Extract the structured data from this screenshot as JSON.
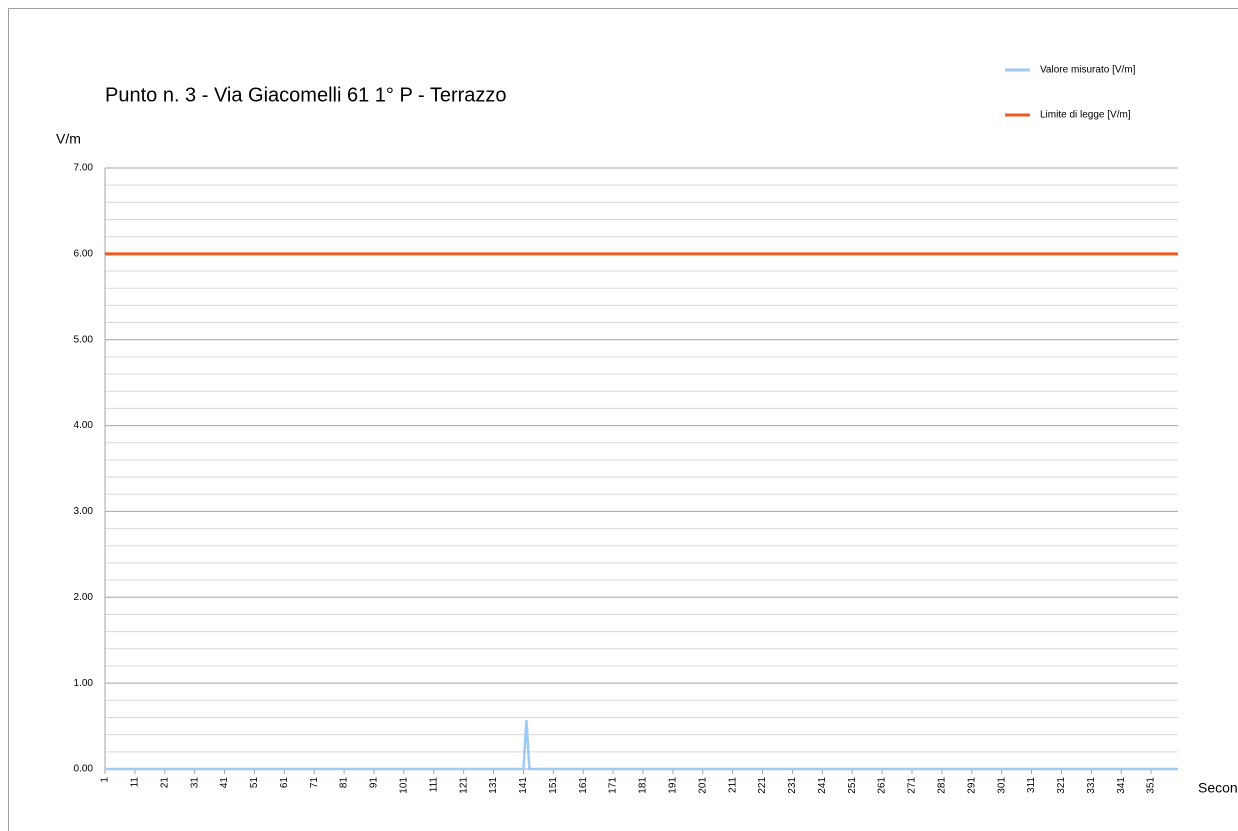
{
  "chart_data": {
    "type": "line",
    "title": "Punto n. 3 - Via Giacomelli 61 1° P - Terrazzo",
    "y_label": "V/m",
    "x_label": "Secondi",
    "x": [
      1,
      2,
      3,
      4,
      5,
      6,
      7,
      8,
      9,
      10,
      11,
      12,
      13,
      14,
      15,
      16,
      17,
      18,
      19,
      20,
      21,
      22,
      23,
      24,
      25,
      26,
      27,
      28,
      29,
      30,
      31,
      32,
      33,
      34,
      35,
      36,
      37,
      38,
      39,
      40,
      41,
      42,
      43,
      44,
      45,
      46,
      47,
      48,
      49,
      50,
      51,
      52,
      53,
      54,
      55,
      56,
      57,
      58,
      59,
      60,
      61,
      62,
      63,
      64,
      65,
      66,
      67,
      68,
      69,
      70,
      71,
      72,
      73,
      74,
      75,
      76,
      77,
      78,
      79,
      80,
      81,
      82,
      83,
      84,
      85,
      86,
      87,
      88,
      89,
      90,
      91,
      92,
      93,
      94,
      95,
      96,
      97,
      98,
      99,
      100,
      101,
      102,
      103,
      104,
      105,
      106,
      107,
      108,
      109,
      110,
      111,
      112,
      113,
      114,
      115,
      116,
      117,
      118,
      119,
      120,
      121,
      122,
      123,
      124,
      125,
      126,
      127,
      128,
      129,
      130,
      131,
      132,
      133,
      134,
      135,
      136,
      137,
      138,
      139,
      140,
      141,
      142,
      143,
      144,
      145,
      146,
      147,
      148,
      149,
      150,
      151,
      152,
      153,
      154,
      155,
      156,
      157,
      158,
      159,
      160,
      161,
      162,
      163,
      164,
      165,
      166,
      167,
      168,
      169,
      170,
      171,
      172,
      173,
      174,
      175,
      176,
      177,
      178,
      179,
      180,
      181,
      182,
      183,
      184,
      185,
      186,
      187,
      188,
      189,
      190,
      191,
      192,
      193,
      194,
      195,
      196,
      197,
      198,
      199,
      200,
      201,
      202,
      203,
      204,
      205,
      206,
      207,
      208,
      209,
      210,
      211,
      212,
      213,
      214,
      215,
      216,
      217,
      218,
      219,
      220,
      221,
      222,
      223,
      224,
      225,
      226,
      227,
      228,
      229,
      230,
      231,
      232,
      233,
      234,
      235,
      236,
      237,
      238,
      239,
      240,
      241,
      242,
      243,
      244,
      245,
      246,
      247,
      248,
      249,
      250,
      251,
      252,
      253,
      254,
      255,
      256,
      257,
      258,
      259,
      260,
      261,
      262,
      263,
      264,
      265,
      266,
      267,
      268,
      269,
      270,
      271,
      272,
      273,
      274,
      275,
      276,
      277,
      278,
      279,
      280,
      281,
      282,
      283,
      284,
      285,
      286,
      287,
      288,
      289,
      290,
      291,
      292,
      293,
      294,
      295,
      296,
      297,
      298,
      299,
      300,
      301,
      302,
      303,
      304,
      305,
      306,
      307,
      308,
      309,
      310,
      311,
      312,
      313,
      314,
      315,
      316,
      317,
      318,
      319,
      320,
      321,
      322,
      323,
      324,
      325,
      326,
      327,
      328,
      329,
      330,
      331,
      332,
      333,
      334,
      335,
      336,
      337,
      338,
      339,
      340,
      341,
      342,
      343,
      344,
      345,
      346,
      347,
      348,
      349,
      350,
      351,
      352,
      353,
      354,
      355,
      356,
      357,
      358,
      359,
      360
    ],
    "xlim": [
      1,
      360
    ],
    "xticks": [
      1,
      11,
      21,
      31,
      41,
      51,
      61,
      71,
      81,
      91,
      101,
      111,
      121,
      131,
      141,
      151,
      161,
      171,
      181,
      191,
      201,
      211,
      221,
      231,
      241,
      251,
      261,
      271,
      281,
      291,
      301,
      311,
      321,
      331,
      341,
      351
    ],
    "ylim": [
      0,
      7
    ],
    "yticks": [
      {
        "value": 0,
        "label": "0.00"
      },
      {
        "value": 1,
        "label": "1.00"
      },
      {
        "value": 2,
        "label": "2.00"
      },
      {
        "value": 3,
        "label": "3.00"
      },
      {
        "value": 4,
        "label": "4.00"
      },
      {
        "value": 5,
        "label": "5.00"
      },
      {
        "value": 6,
        "label": "6.00"
      },
      {
        "value": 7,
        "label": "7.00"
      }
    ],
    "minor_yticks": [
      0.2,
      0.4,
      0.6,
      0.8,
      1.2,
      1.4,
      1.6,
      1.8,
      2.2,
      2.4,
      2.6,
      2.8,
      3.2,
      3.4,
      3.6,
      3.8,
      4.2,
      4.4,
      4.6,
      4.8,
      5.2,
      5.4,
      5.6,
      5.8,
      6.2,
      6.4,
      6.6,
      6.8
    ],
    "grid": true,
    "legend": "top-right",
    "series": [
      {
        "name": "Valore misurato [V/m]",
        "color": "#9dcbf6",
        "values": [
          0,
          0,
          0,
          0,
          0,
          0,
          0,
          0,
          0,
          0,
          0,
          0,
          0,
          0,
          0,
          0,
          0,
          0,
          0,
          0,
          0,
          0,
          0,
          0,
          0,
          0,
          0,
          0,
          0,
          0,
          0,
          0,
          0,
          0,
          0,
          0,
          0,
          0,
          0,
          0,
          0,
          0,
          0,
          0,
          0,
          0,
          0,
          0,
          0,
          0,
          0,
          0,
          0,
          0,
          0,
          0,
          0,
          0,
          0,
          0,
          0,
          0,
          0,
          0,
          0,
          0,
          0,
          0,
          0,
          0,
          0,
          0,
          0,
          0,
          0,
          0,
          0,
          0,
          0,
          0,
          0,
          0,
          0,
          0,
          0,
          0,
          0,
          0,
          0,
          0,
          0,
          0,
          0,
          0,
          0,
          0,
          0,
          0,
          0,
          0,
          0,
          0,
          0,
          0,
          0,
          0,
          0,
          0,
          0,
          0,
          0,
          0,
          0,
          0,
          0,
          0,
          0,
          0,
          0,
          0,
          0,
          0,
          0,
          0,
          0,
          0,
          0,
          0,
          0,
          0,
          0,
          0,
          0,
          0,
          0,
          0,
          0,
          0,
          0,
          0,
          0,
          0.57,
          0,
          0,
          0,
          0,
          0,
          0,
          0,
          0,
          0,
          0,
          0,
          0,
          0,
          0,
          0,
          0,
          0,
          0,
          0,
          0,
          0,
          0,
          0,
          0,
          0,
          0,
          0,
          0,
          0,
          0,
          0,
          0,
          0,
          0,
          0,
          0,
          0,
          0,
          0,
          0,
          0,
          0,
          0,
          0,
          0,
          0,
          0,
          0,
          0,
          0,
          0,
          0,
          0,
          0,
          0,
          0,
          0,
          0,
          0,
          0,
          0,
          0,
          0,
          0,
          0,
          0,
          0,
          0,
          0,
          0,
          0,
          0,
          0,
          0,
          0,
          0,
          0,
          0,
          0,
          0,
          0,
          0,
          0,
          0,
          0,
          0,
          0,
          0,
          0,
          0,
          0,
          0,
          0,
          0,
          0,
          0,
          0,
          0,
          0,
          0,
          0,
          0,
          0,
          0,
          0,
          0,
          0,
          0,
          0,
          0,
          0,
          0,
          0,
          0,
          0,
          0,
          0,
          0,
          0,
          0,
          0,
          0,
          0,
          0,
          0,
          0,
          0,
          0,
          0,
          0,
          0,
          0,
          0,
          0,
          0,
          0,
          0,
          0,
          0,
          0,
          0,
          0,
          0,
          0,
          0,
          0,
          0,
          0,
          0,
          0,
          0,
          0,
          0,
          0,
          0,
          0,
          0,
          0,
          0,
          0,
          0,
          0,
          0,
          0,
          0,
          0,
          0,
          0,
          0,
          0,
          0,
          0,
          0,
          0,
          0,
          0,
          0,
          0,
          0,
          0,
          0,
          0,
          0,
          0,
          0,
          0,
          0,
          0,
          0,
          0,
          0,
          0,
          0,
          0,
          0,
          0,
          0,
          0,
          0,
          0,
          0,
          0,
          0,
          0,
          0,
          0,
          0,
          0,
          0,
          0,
          0,
          0,
          0,
          0,
          0,
          0,
          0,
          0
        ]
      },
      {
        "name": "Limite di legge [V/m]",
        "color": "#f05a1e",
        "values": [
          6,
          6,
          6,
          6,
          6,
          6,
          6,
          6,
          6,
          6,
          6,
          6,
          6,
          6,
          6,
          6,
          6,
          6,
          6,
          6,
          6,
          6,
          6,
          6,
          6,
          6,
          6,
          6,
          6,
          6,
          6,
          6,
          6,
          6,
          6,
          6,
          6,
          6,
          6,
          6,
          6,
          6,
          6,
          6,
          6,
          6,
          6,
          6,
          6,
          6,
          6,
          6,
          6,
          6,
          6,
          6,
          6,
          6,
          6,
          6,
          6,
          6,
          6,
          6,
          6,
          6,
          6,
          6,
          6,
          6,
          6,
          6,
          6,
          6,
          6,
          6,
          6,
          6,
          6,
          6,
          6,
          6,
          6,
          6,
          6,
          6,
          6,
          6,
          6,
          6,
          6,
          6,
          6,
          6,
          6,
          6,
          6,
          6,
          6,
          6,
          6,
          6,
          6,
          6,
          6,
          6,
          6,
          6,
          6,
          6,
          6,
          6,
          6,
          6,
          6,
          6,
          6,
          6,
          6,
          6,
          6,
          6,
          6,
          6,
          6,
          6,
          6,
          6,
          6,
          6,
          6,
          6,
          6,
          6,
          6,
          6,
          6,
          6,
          6,
          6,
          6,
          6,
          6,
          6,
          6,
          6,
          6,
          6,
          6,
          6,
          6,
          6,
          6,
          6,
          6,
          6,
          6,
          6,
          6,
          6,
          6,
          6,
          6,
          6,
          6,
          6,
          6,
          6,
          6,
          6,
          6,
          6,
          6,
          6,
          6,
          6,
          6,
          6,
          6,
          6,
          6,
          6,
          6,
          6,
          6,
          6,
          6,
          6,
          6,
          6,
          6,
          6,
          6,
          6,
          6,
          6,
          6,
          6,
          6,
          6,
          6,
          6,
          6,
          6,
          6,
          6,
          6,
          6,
          6,
          6,
          6,
          6,
          6,
          6,
          6,
          6,
          6,
          6,
          6,
          6,
          6,
          6,
          6,
          6,
          6,
          6,
          6,
          6,
          6,
          6,
          6,
          6,
          6,
          6,
          6,
          6,
          6,
          6,
          6,
          6,
          6,
          6,
          6,
          6,
          6,
          6,
          6,
          6,
          6,
          6,
          6,
          6,
          6,
          6,
          6,
          6,
          6,
          6,
          6,
          6,
          6,
          6,
          6,
          6,
          6,
          6,
          6,
          6,
          6,
          6,
          6,
          6,
          6,
          6,
          6,
          6,
          6,
          6,
          6,
          6,
          6,
          6,
          6,
          6,
          6,
          6,
          6,
          6,
          6,
          6,
          6,
          6,
          6,
          6,
          6,
          6,
          6,
          6,
          6,
          6,
          6,
          6,
          6,
          6,
          6,
          6,
          6,
          6,
          6,
          6,
          6,
          6,
          6,
          6,
          6,
          6,
          6,
          6,
          6,
          6,
          6,
          6,
          6,
          6,
          6,
          6,
          6,
          6,
          6,
          6,
          6,
          6,
          6,
          6,
          6,
          6,
          6,
          6,
          6,
          6,
          6,
          6,
          6,
          6,
          6,
          6,
          6,
          6,
          6,
          6,
          6,
          6,
          6,
          6,
          6,
          6,
          6,
          6,
          6,
          6
        ]
      }
    ]
  }
}
